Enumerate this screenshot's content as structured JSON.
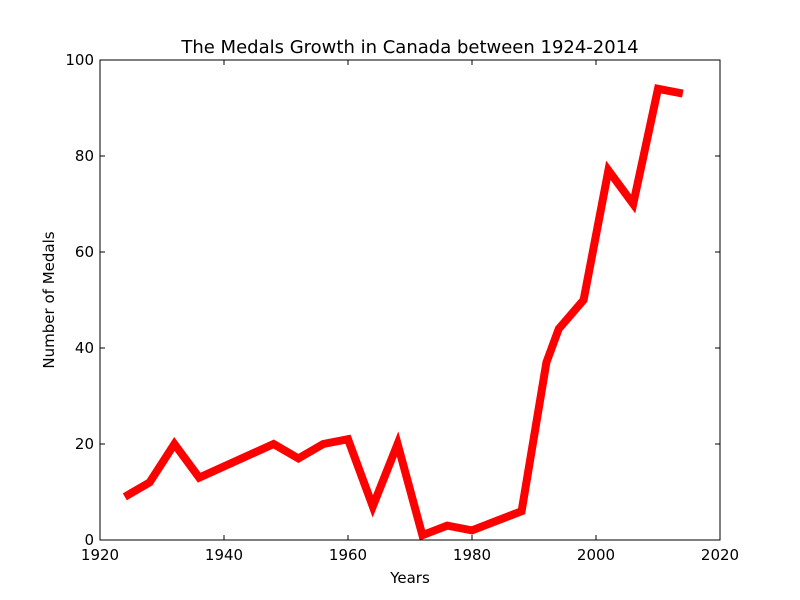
{
  "chart_data": {
    "type": "line",
    "title": "The Medals Growth in Canada between 1924-2014",
    "xlabel": "Years",
    "ylabel": "Number of Medals",
    "xlim": [
      1920,
      2020
    ],
    "ylim": [
      0,
      100
    ],
    "xticks": [
      1920,
      1940,
      1960,
      1980,
      2000,
      2020
    ],
    "yticks": [
      0,
      20,
      40,
      60,
      80,
      100
    ],
    "grid": false,
    "series": [
      {
        "color": "#ff0000",
        "x": [
          1924,
          1928,
          1932,
          1936,
          1948,
          1952,
          1956,
          1960,
          1964,
          1968,
          1972,
          1976,
          1980,
          1988,
          1992,
          1994,
          1998,
          2002,
          2006,
          2010,
          2014
        ],
        "y": [
          9,
          12,
          20,
          13,
          20,
          17,
          20,
          21,
          7,
          20,
          1,
          3,
          2,
          6,
          37,
          44,
          50,
          77,
          70,
          94,
          93
        ]
      }
    ]
  }
}
